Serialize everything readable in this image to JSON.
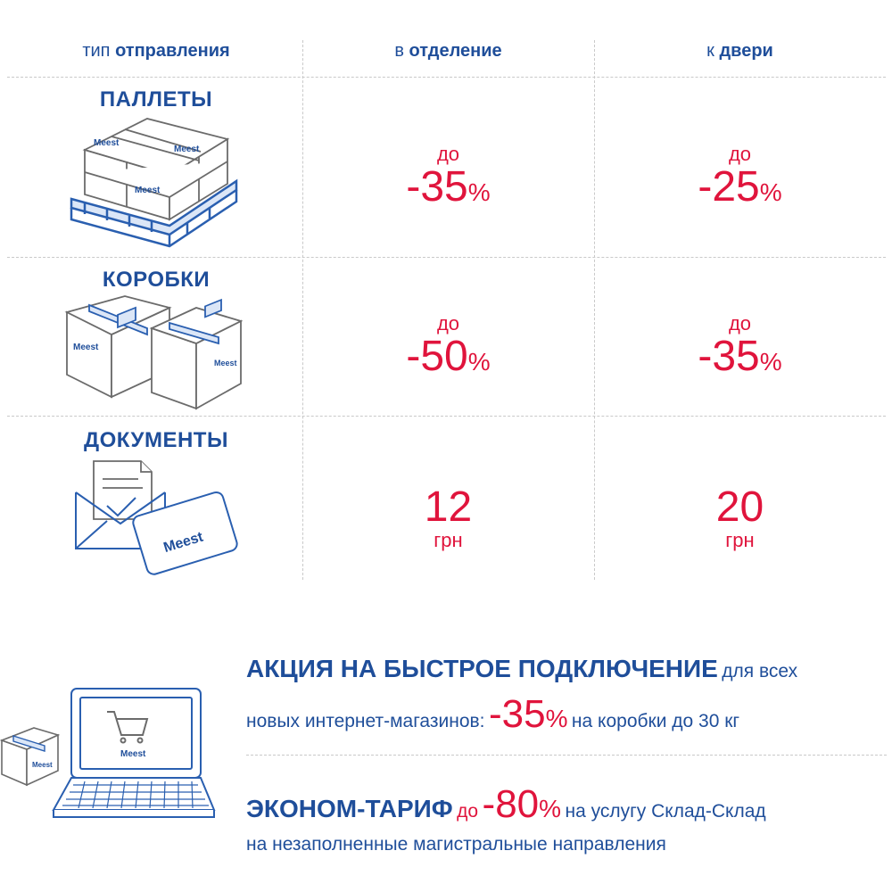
{
  "header": {
    "col1_prefix": "тип",
    "col1_bold": "отправления",
    "col2_prefix": "в",
    "col2_bold": "отделение",
    "col3_prefix": "к",
    "col3_bold": "двери"
  },
  "rows": [
    {
      "title": "ПАЛЛЕТЫ",
      "icon": "pallet-icon",
      "branch": {
        "prefix": "до",
        "value": "-35",
        "unit": "%"
      },
      "door": {
        "prefix": "до",
        "value": "-25",
        "unit": "%"
      }
    },
    {
      "title": "КОРОБКИ",
      "icon": "boxes-icon",
      "branch": {
        "prefix": "до",
        "value": "-50",
        "unit": "%"
      },
      "door": {
        "prefix": "до",
        "value": "-35",
        "unit": "%"
      }
    },
    {
      "title": "ДОКУМЕНТЫ",
      "icon": "documents-icon",
      "branch": {
        "value": "12",
        "unit": "грн"
      },
      "door": {
        "value": "20",
        "unit": "грн"
      }
    }
  ],
  "brand": {
    "logo_text": "Meest",
    "primary_color": "#1f4e9a",
    "accent_color": "#e0143c"
  },
  "promo1": {
    "headline": "АКЦИЯ НА БЫСТРОЕ ПОДКЛЮЧЕНИЕ",
    "text1": "для всех",
    "text2": "новых интернет-магазинов:",
    "value": "-35",
    "unit": "%",
    "text3": "на коробки до 30 кг"
  },
  "promo2": {
    "headline": "ЭКОНОМ-ТАРИФ",
    "prefix": "до",
    "value": "-80",
    "unit": "%",
    "text1": "на услугу Склад-Склад",
    "text2": "на незаполненные магистральные направления"
  }
}
